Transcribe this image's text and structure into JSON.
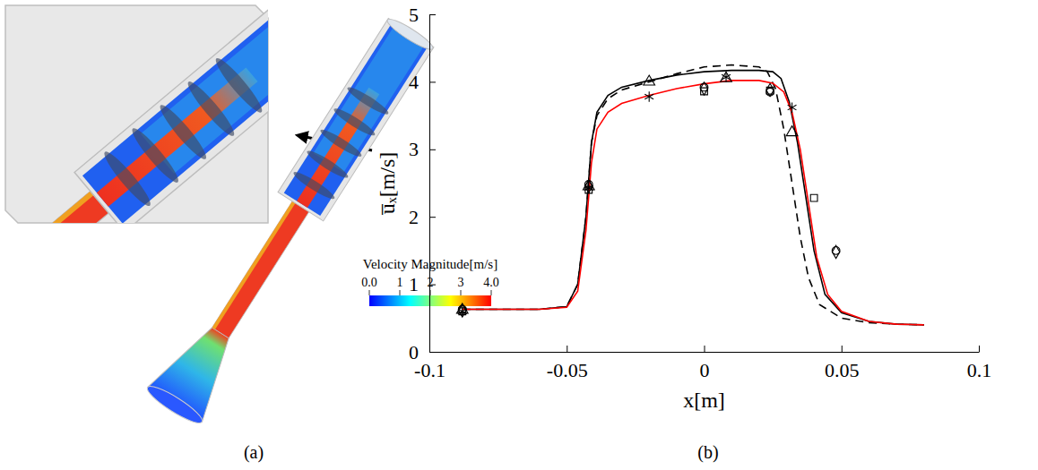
{
  "chart_data": {
    "type": "line",
    "xlabel": "x[m]",
    "ylabel": "u̅ₓ[m/s]",
    "xlim": [
      -0.1,
      0.1
    ],
    "xticks": [
      -0.1,
      -0.05,
      0,
      0.05,
      0.1
    ],
    "ylim": [
      0,
      5
    ],
    "yticks": [
      0,
      1,
      2,
      3,
      4,
      5
    ],
    "grid": false,
    "series": [
      {
        "type": "line",
        "color": "#000000",
        "line_style": "solid",
        "x": [
          -0.088,
          -0.06,
          -0.05,
          -0.046,
          -0.043,
          -0.041,
          -0.039,
          -0.035,
          -0.03,
          -0.02,
          -0.01,
          0,
          0.01,
          0.02,
          0.025,
          0.028,
          0.031,
          0.034,
          0.037,
          0.04,
          0.044,
          0.05,
          0.06,
          0.07,
          0.08
        ],
        "values": [
          0.63,
          0.63,
          0.67,
          1.0,
          2.0,
          3.1,
          3.55,
          3.8,
          3.92,
          4.02,
          4.1,
          4.15,
          4.17,
          4.17,
          4.15,
          4.05,
          3.7,
          3.1,
          2.3,
          1.5,
          0.85,
          0.58,
          0.45,
          0.41,
          0.4
        ]
      },
      {
        "type": "line",
        "color": "#000000",
        "line_style": "dashed",
        "x": [
          -0.088,
          -0.06,
          -0.05,
          -0.046,
          -0.043,
          -0.041,
          -0.039,
          -0.035,
          -0.03,
          -0.02,
          -0.01,
          0,
          0.01,
          0.02,
          0.023,
          0.026,
          0.029,
          0.032,
          0.035,
          0.038,
          0.042,
          0.05,
          0.06,
          0.07,
          0.08
        ],
        "values": [
          0.63,
          0.63,
          0.67,
          1.0,
          2.0,
          3.1,
          3.5,
          3.75,
          3.88,
          4.0,
          4.12,
          4.22,
          4.25,
          4.22,
          4.15,
          3.9,
          3.3,
          2.5,
          1.7,
          1.1,
          0.7,
          0.5,
          0.43,
          0.41,
          0.4
        ]
      },
      {
        "type": "line",
        "color": "#ff0000",
        "line_style": "solid",
        "x": [
          -0.088,
          -0.06,
          -0.05,
          -0.046,
          -0.043,
          -0.041,
          -0.039,
          -0.035,
          -0.03,
          -0.02,
          -0.01,
          0,
          0.01,
          0.02,
          0.025,
          0.029,
          0.032,
          0.035,
          0.038,
          0.041,
          0.045,
          0.05,
          0.06,
          0.07,
          0.08
        ],
        "values": [
          0.63,
          0.63,
          0.66,
          0.9,
          1.8,
          2.8,
          3.3,
          3.55,
          3.68,
          3.8,
          3.9,
          3.97,
          4.02,
          4.02,
          3.98,
          3.85,
          3.55,
          3.0,
          2.2,
          1.4,
          0.85,
          0.6,
          0.45,
          0.41,
          0.4
        ]
      },
      {
        "type": "scatter",
        "color": "#000000",
        "marker": "asterisk",
        "x": [
          -0.088,
          -0.042,
          -0.02,
          0.008,
          0.032
        ],
        "values": [
          0.6,
          2.43,
          3.78,
          4.07,
          3.62
        ]
      },
      {
        "type": "scatter",
        "color": "#000000",
        "marker": "triangle",
        "x": [
          -0.088,
          -0.042,
          -0.02,
          0.008,
          0.032
        ],
        "values": [
          0.62,
          2.45,
          4.0,
          4.05,
          3.25
        ]
      },
      {
        "type": "scatter",
        "color": "#000000",
        "marker": "square",
        "x": [
          -0.088,
          -0.042,
          0,
          0.024,
          0.04
        ],
        "values": [
          0.6,
          2.4,
          3.86,
          3.87,
          2.28
        ]
      },
      {
        "type": "scatter",
        "color": "#000000",
        "marker": "circle",
        "x": [
          -0.088,
          -0.042,
          0,
          0.024,
          0.048
        ],
        "values": [
          0.63,
          2.48,
          3.92,
          3.85,
          1.5
        ]
      },
      {
        "type": "scatter",
        "color": "#000000",
        "marker": "diamond",
        "x": [
          -0.088,
          -0.042,
          0,
          0.024,
          0.048
        ],
        "values": [
          0.61,
          2.45,
          3.9,
          3.88,
          1.48
        ]
      }
    ]
  },
  "figure": {
    "panel_a": {
      "label": "(a)",
      "colorbar": {
        "title": "Velocity Magnitude[m/s]",
        "range": [
          0,
          4
        ],
        "ticks": [
          {
            "value": 0,
            "label": "0.0"
          },
          1,
          2,
          3,
          {
            "value": 4,
            "label": "4.0"
          }
        ]
      }
    },
    "panel_b": {
      "label": "(b)"
    }
  }
}
